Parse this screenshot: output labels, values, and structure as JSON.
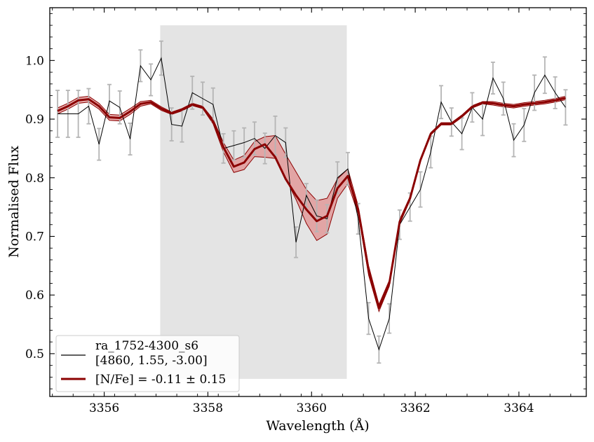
{
  "chart_data": {
    "type": "line",
    "title": "",
    "xlabel": "Wavelength (Å)",
    "ylabel": "Normalised Flux",
    "xlim": [
      3354.95,
      3365.3
    ],
    "ylim": [
      0.427,
      1.09
    ],
    "xticks": [
      3356,
      3358,
      3360,
      3362,
      3364
    ],
    "yticks": [
      0.5,
      0.6,
      0.7,
      0.8,
      0.9,
      1.0
    ],
    "xtick_labels": [
      "3356",
      "3358",
      "3360",
      "3362",
      "3364"
    ],
    "ytick_labels": [
      "0.5",
      "0.6",
      "0.7",
      "0.8",
      "0.9",
      "1.0"
    ],
    "highlight_region": {
      "x": [
        3357.08,
        3360.68
      ],
      "y": [
        0.457,
        1.06
      ],
      "color": "#e4e4e4"
    },
    "colors": {
      "observed": "#000000",
      "model": "#8b0000",
      "band": "#e29a9a",
      "errorbar": "#b5b5b5"
    },
    "observed": {
      "name": "ra_1752-4300_s6",
      "x": [
        3355.1,
        3355.3,
        3355.5,
        3355.7,
        3355.9,
        3356.1,
        3356.3,
        3356.5,
        3356.7,
        3356.9,
        3357.1,
        3357.3,
        3357.5,
        3357.7,
        3357.9,
        3358.1,
        3358.3,
        3358.5,
        3358.7,
        3358.9,
        3359.1,
        3359.3,
        3359.5,
        3359.7,
        3359.9,
        3360.1,
        3360.3,
        3360.5,
        3360.7,
        3360.9,
        3361.1,
        3361.3,
        3361.5,
        3361.7,
        3361.9,
        3362.1,
        3362.3,
        3362.5,
        3362.7,
        3362.9,
        3363.1,
        3363.3,
        3363.5,
        3363.7,
        3363.9,
        3364.1,
        3364.3,
        3364.5,
        3364.7,
        3364.9
      ],
      "y": [
        0.909,
        0.909,
        0.909,
        0.922,
        0.857,
        0.931,
        0.92,
        0.866,
        0.991,
        0.967,
        1.004,
        0.891,
        0.888,
        0.945,
        0.935,
        0.925,
        0.85,
        0.855,
        0.86,
        0.867,
        0.85,
        0.872,
        0.86,
        0.69,
        0.77,
        0.735,
        0.73,
        0.8,
        0.815,
        0.73,
        0.56,
        0.507,
        0.56,
        0.72,
        0.75,
        0.78,
        0.844,
        0.929,
        0.895,
        0.875,
        0.92,
        0.9,
        0.97,
        0.935,
        0.864,
        0.89,
        0.945,
        0.975,
        0.945,
        0.92
      ],
      "yerr": [
        0.04,
        0.04,
        0.04,
        0.03,
        0.027,
        0.028,
        0.028,
        0.027,
        0.027,
        0.027,
        0.029,
        0.028,
        0.027,
        0.028,
        0.028,
        0.028,
        0.025,
        0.025,
        0.025,
        0.028,
        0.026,
        0.033,
        0.025,
        0.026,
        0.02,
        0.027,
        0.024,
        0.027,
        0.028,
        0.026,
        0.027,
        0.023,
        0.025,
        0.025,
        0.024,
        0.03,
        0.027,
        0.028,
        0.024,
        0.027,
        0.025,
        0.028,
        0.027,
        0.028,
        0.028,
        0.028,
        0.03,
        0.031,
        0.027,
        0.03
      ]
    },
    "model": {
      "name": "[N/Fe] = -0.11 ± 0.15",
      "x": [
        3355.1,
        3355.3,
        3355.5,
        3355.7,
        3355.9,
        3356.1,
        3356.3,
        3356.5,
        3356.7,
        3356.9,
        3357.1,
        3357.3,
        3357.5,
        3357.7,
        3357.9,
        3358.1,
        3358.3,
        3358.5,
        3358.7,
        3358.9,
        3359.1,
        3359.3,
        3359.5,
        3359.7,
        3359.9,
        3360.1,
        3360.3,
        3360.5,
        3360.7,
        3360.9,
        3361.1,
        3361.3,
        3361.5,
        3361.7,
        3361.9,
        3362.1,
        3362.3,
        3362.5,
        3362.7,
        3362.9,
        3363.1,
        3363.3,
        3363.5,
        3363.7,
        3363.9,
        3364.1,
        3364.3,
        3364.5,
        3364.7,
        3364.9
      ],
      "y": [
        0.914,
        0.922,
        0.932,
        0.934,
        0.922,
        0.903,
        0.902,
        0.913,
        0.926,
        0.929,
        0.918,
        0.91,
        0.916,
        0.925,
        0.92,
        0.896,
        0.852,
        0.819,
        0.826,
        0.849,
        0.857,
        0.835,
        0.798,
        0.77,
        0.746,
        0.726,
        0.735,
        0.782,
        0.803,
        0.745,
        0.642,
        0.578,
        0.62,
        0.725,
        0.765,
        0.83,
        0.875,
        0.892,
        0.892,
        0.905,
        0.921,
        0.928,
        0.927,
        0.924,
        0.922,
        0.925,
        0.927,
        0.929,
        0.932,
        0.936
      ],
      "band_upper": [
        0.919,
        0.927,
        0.937,
        0.939,
        0.927,
        0.908,
        0.907,
        0.918,
        0.93,
        0.932,
        0.921,
        0.912,
        0.918,
        0.927,
        0.922,
        0.9,
        0.86,
        0.83,
        0.838,
        0.862,
        0.87,
        0.872,
        0.84,
        0.81,
        0.78,
        0.761,
        0.765,
        0.798,
        0.815,
        0.752,
        0.65,
        0.584,
        0.625,
        0.729,
        0.768,
        0.832,
        0.877,
        0.894,
        0.894,
        0.907,
        0.923,
        0.93,
        0.93,
        0.927,
        0.925,
        0.928,
        0.93,
        0.932,
        0.935,
        0.939
      ],
      "band_lower": [
        0.909,
        0.917,
        0.927,
        0.929,
        0.917,
        0.898,
        0.897,
        0.908,
        0.922,
        0.926,
        0.915,
        0.908,
        0.914,
        0.923,
        0.918,
        0.892,
        0.844,
        0.809,
        0.814,
        0.836,
        0.835,
        0.833,
        0.799,
        0.763,
        0.722,
        0.693,
        0.704,
        0.765,
        0.79,
        0.738,
        0.634,
        0.572,
        0.615,
        0.721,
        0.762,
        0.828,
        0.873,
        0.89,
        0.89,
        0.903,
        0.919,
        0.926,
        0.924,
        0.921,
        0.919,
        0.922,
        0.924,
        0.926,
        0.929,
        0.933
      ]
    },
    "legend": {
      "placement": "lower-left",
      "entries": [
        {
          "line1": "ra_1752-4300_s6",
          "line2": "[4860, 1.55, -3.00]"
        },
        {
          "line1": "[N/Fe] = -0.11 ± 0.15"
        }
      ]
    }
  }
}
